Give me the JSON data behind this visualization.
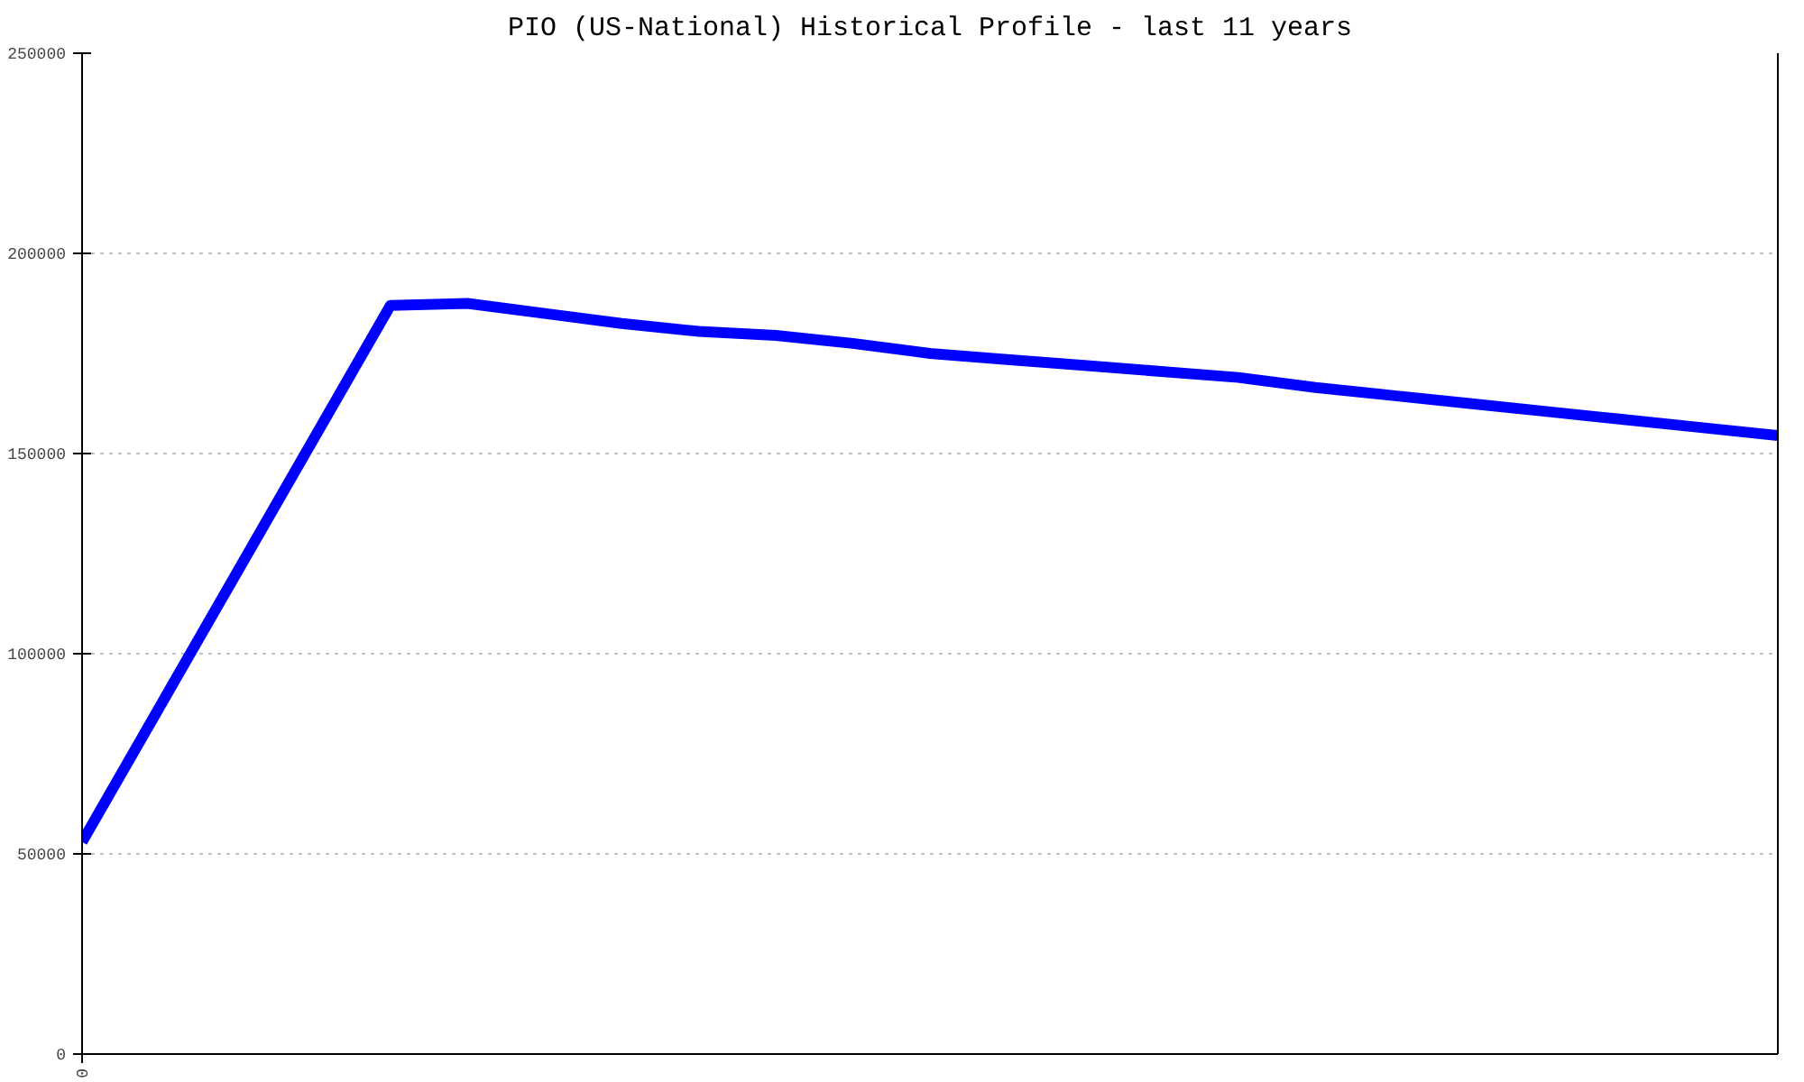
{
  "chart_data": {
    "type": "line",
    "title": "PIO (US-National) Historical Profile - last 11 years",
    "categories": [
      "0",
      null,
      null,
      null,
      null,
      null,
      null,
      null,
      null,
      null,
      null,
      null,
      null,
      null,
      null,
      null,
      null,
      null,
      null,
      null,
      null,
      null,
      null
    ],
    "series": [
      {
        "color": "#0000ff",
        "values": [
          53000,
          86500,
          120000,
          153500,
          187000,
          187500,
          185000,
          182500,
          180500,
          179500,
          177500,
          175000,
          173500,
          172000,
          170500,
          169000,
          166500,
          164500,
          162500,
          160500,
          158500,
          156500,
          154500
        ]
      }
    ],
    "ylim": [
      0,
      250000
    ],
    "yticks": [
      0,
      50000,
      100000,
      150000,
      200000,
      250000
    ],
    "grid": "y"
  }
}
